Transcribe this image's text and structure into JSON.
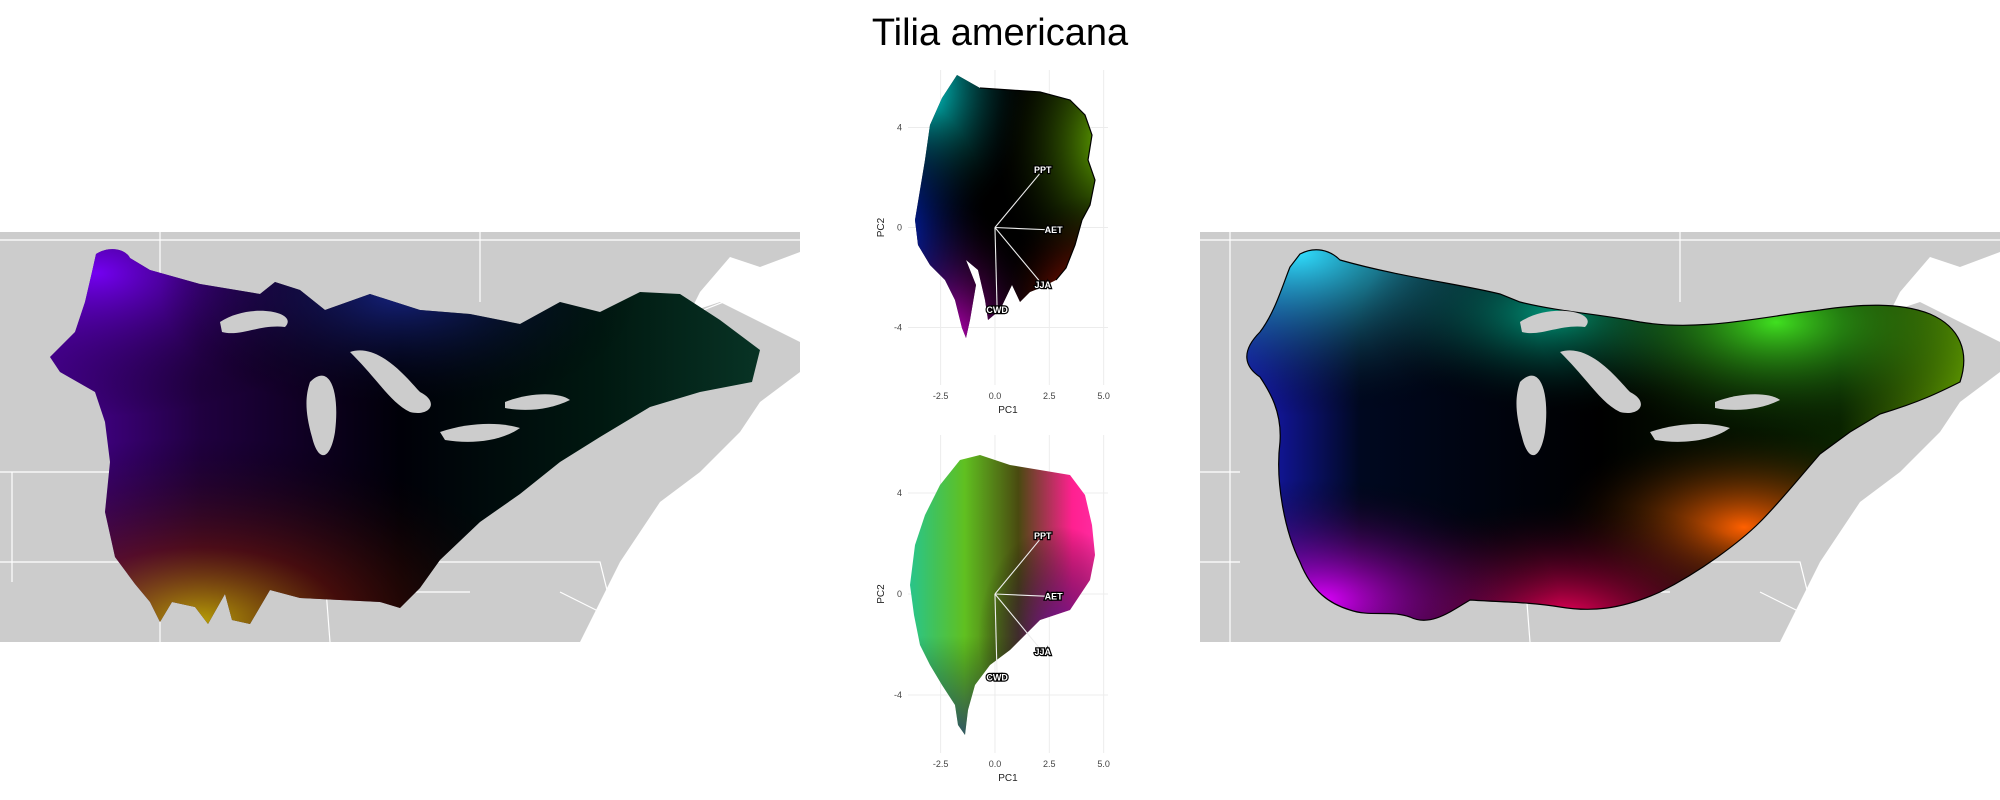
{
  "title": "Tilia americana",
  "colors": {
    "land": "#cccccc",
    "border": "#ffffff",
    "panel_bg": "#ffffff",
    "grid": "#ececec",
    "arrow": "#eeeeee",
    "hull": "#000000"
  },
  "chart_data": [
    {
      "type": "map",
      "name": "observed-color-map",
      "legend": "none"
    },
    {
      "type": "scatter",
      "name": "pca-predicted",
      "xlabel": "PC1",
      "ylabel": "PC2",
      "xlim": [
        -4,
        5.2
      ],
      "ylim": [
        -6.3,
        6.3
      ],
      "x_ticks": [
        -2.5,
        0.0,
        2.5,
        5.0
      ],
      "x_tick_labels": [
        "-2.5",
        "0.0",
        "2.5",
        "5.0"
      ],
      "y_ticks": [
        -4,
        0,
        4
      ],
      "y_tick_labels": [
        "-4",
        "0",
        "4"
      ],
      "grid": true,
      "vectors": [
        {
          "label": "PPT",
          "x": 2.2,
          "y": 2.3
        },
        {
          "label": "AET",
          "x": 2.7,
          "y": -0.1
        },
        {
          "label": "JJA",
          "x": 2.2,
          "y": -2.3
        },
        {
          "label": "CWD",
          "x": 0.1,
          "y": -3.3
        }
      ]
    },
    {
      "type": "scatter",
      "name": "pca-observed",
      "xlabel": "PC1",
      "ylabel": "PC2",
      "xlim": [
        -4,
        5.2
      ],
      "ylim": [
        -6.3,
        6.3
      ],
      "x_ticks": [
        -2.5,
        0.0,
        2.5,
        5.0
      ],
      "x_tick_labels": [
        "-2.5",
        "0.0",
        "2.5",
        "5.0"
      ],
      "y_ticks": [
        -4,
        0,
        4
      ],
      "y_tick_labels": [
        "-4",
        "0",
        "4"
      ],
      "grid": true,
      "vectors": [
        {
          "label": "PPT",
          "x": 2.2,
          "y": 2.3
        },
        {
          "label": "AET",
          "x": 2.7,
          "y": -0.1
        },
        {
          "label": "JJA",
          "x": 2.2,
          "y": -2.3
        },
        {
          "label": "CWD",
          "x": 0.1,
          "y": -3.3
        }
      ]
    },
    {
      "type": "map",
      "name": "predicted-color-map",
      "legend": "none"
    }
  ]
}
